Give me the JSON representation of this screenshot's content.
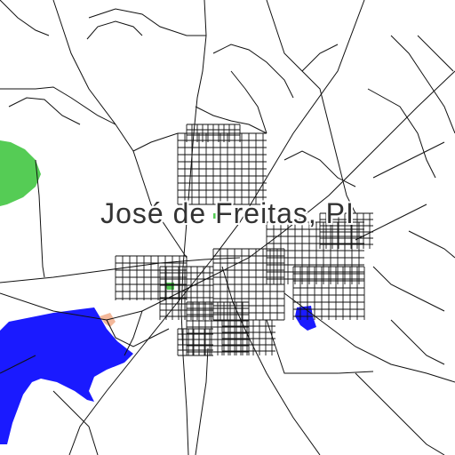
{
  "map": {
    "place_label": "José de Freitas, PI",
    "colors": {
      "background": "#ffffff",
      "road": "#111111",
      "water": "#1a1aff",
      "park": "#55cc55",
      "sand": "#f3b89a",
      "label": "#333333"
    }
  }
}
